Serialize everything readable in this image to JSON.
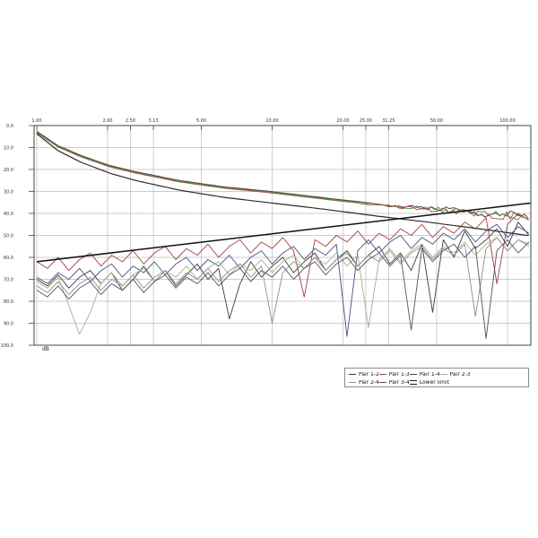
{
  "page": {
    "background": "#ffffff"
  },
  "chart_data": {
    "type": "line",
    "title": "",
    "x_axis": {
      "scale": "log",
      "unit": "MHz",
      "range_mhz": [
        1,
        125
      ],
      "ticks": [
        {
          "f": 1,
          "label": "1.00"
        },
        {
          "f": 2,
          "label": "2.00"
        },
        {
          "f": 2.5,
          "label": "2.50"
        },
        {
          "f": 3.13,
          "label": "3.13"
        },
        {
          "f": 5,
          "label": "5.00"
        },
        {
          "f": 10,
          "label": "10.00"
        },
        {
          "f": 20,
          "label": "20.00"
        },
        {
          "f": 25,
          "label": "25.00"
        },
        {
          "f": 31.25,
          "label": "31.25"
        },
        {
          "f": 50,
          "label": "50.00"
        },
        {
          "f": 100,
          "label": "100.00"
        }
      ]
    },
    "y_axis": {
      "unit_label": "dB",
      "range_db": [
        0,
        100
      ],
      "inverted": true,
      "tick_step": 10,
      "ticks": [
        "0.0",
        "10.0",
        "20.0",
        "30.0",
        "40.0",
        "50.0",
        "60.0",
        "70.0",
        "80.0",
        "90.0",
        "100.0"
      ]
    },
    "grid": {
      "line_color": "#bcbcbc",
      "border_color": "#555555",
      "tick_color": "#444444",
      "label_color": "#333333"
    },
    "legend": {
      "items": [
        {
          "label": "Pair 1-2",
          "color": "#3a3a3a",
          "marker": "line"
        },
        {
          "label": "Pair 1-3",
          "color": "#a04040",
          "marker": "line"
        },
        {
          "label": "Pair 1-4",
          "color": "#464f87",
          "marker": "line"
        },
        {
          "label": "Pair 2-3",
          "color": "#9cb489",
          "marker": "line"
        },
        {
          "label": "Pair 2-4",
          "color": "#8f8f8f",
          "marker": "line"
        },
        {
          "label": "Pair 3-4",
          "color": "#5d4a66",
          "marker": "line"
        },
        {
          "label": "Lower limit",
          "color": "#1a1a1a",
          "marker": "double-line"
        }
      ],
      "row_split": 4
    },
    "series": {
      "pair_freq_grid": {
        "points_per_decade": 22,
        "i_max": 46
      },
      "pairs": [
        {
          "name": "Pair 1-2",
          "color": "#3a3a3a",
          "db": [
            70,
            73,
            68,
            74,
            69,
            66,
            72,
            67,
            75,
            70,
            64,
            71,
            66,
            73,
            68,
            63,
            70,
            65,
            88,
            72,
            62,
            69,
            64,
            60,
            67,
            62,
            58,
            66,
            61,
            57,
            64,
            59,
            55,
            63,
            58,
            66,
            54,
            85,
            52,
            60,
            48,
            56,
            52,
            47,
            55,
            44,
            50
          ]
        },
        {
          "name": "Pair 1-3",
          "color": "#a04040",
          "db": [
            62,
            65,
            60,
            66,
            61,
            58,
            64,
            59,
            62,
            57,
            63,
            58,
            55,
            61,
            56,
            59,
            54,
            60,
            55,
            52,
            58,
            53,
            56,
            51,
            57,
            78,
            52,
            55,
            50,
            53,
            48,
            54,
            49,
            52,
            47,
            50,
            45,
            51,
            46,
            49,
            44,
            47,
            42,
            72,
            45,
            40,
            43
          ]
        },
        {
          "name": "Pair 1-4",
          "color": "#464f87",
          "db": [
            69,
            72,
            67,
            70,
            65,
            71,
            66,
            63,
            69,
            64,
            67,
            62,
            68,
            63,
            60,
            66,
            61,
            64,
            59,
            65,
            60,
            57,
            63,
            58,
            55,
            61,
            56,
            59,
            54,
            96,
            57,
            52,
            58,
            53,
            50,
            56,
            51,
            54,
            49,
            52,
            47,
            53,
            48,
            45,
            51,
            46,
            49
          ]
        },
        {
          "name": "Pair 2-3",
          "color": "#9cb489",
          "db": [
            71,
            74,
            69,
            82,
            95,
            85,
            72,
            67,
            73,
            68,
            65,
            71,
            66,
            69,
            64,
            70,
            65,
            62,
            68,
            63,
            66,
            61,
            67,
            62,
            59,
            65,
            60,
            63,
            58,
            64,
            59,
            92,
            61,
            56,
            62,
            57,
            54,
            60,
            55,
            58,
            53,
            59,
            54,
            51,
            57,
            52,
            55
          ]
        },
        {
          "name": "Pair 2-4",
          "color": "#8f8f8f",
          "db": [
            73,
            76,
            71,
            77,
            72,
            69,
            75,
            70,
            73,
            68,
            74,
            69,
            66,
            72,
            67,
            70,
            65,
            71,
            66,
            63,
            69,
            64,
            90,
            67,
            62,
            65,
            60,
            66,
            61,
            58,
            64,
            59,
            62,
            57,
            63,
            58,
            55,
            61,
            56,
            59,
            54,
            87,
            56,
            51,
            57,
            52,
            54
          ]
        },
        {
          "name": "Pair 3-4",
          "color": "#5d4a66",
          "db": [
            75,
            78,
            73,
            79,
            74,
            71,
            77,
            72,
            75,
            70,
            76,
            71,
            68,
            74,
            69,
            72,
            67,
            73,
            68,
            65,
            71,
            66,
            69,
            64,
            70,
            65,
            62,
            68,
            63,
            60,
            66,
            61,
            58,
            64,
            59,
            93,
            56,
            62,
            57,
            54,
            60,
            55,
            97,
            57,
            52,
            58,
            53
          ]
        }
      ],
      "insertion_loss_cluster": {
        "curves": [
          {
            "color": "#3a3a3a",
            "offset_db": -0.3
          },
          {
            "color": "#4e8a3e",
            "offset_db": 0.0
          },
          {
            "color": "#a04848",
            "offset_db": 0.35
          }
        ],
        "fuzz": {
          "start_mhz": 22,
          "max_amp_db": 2.1
        },
        "points": [
          [
            1,
            2.9
          ],
          [
            1.23,
            9.4
          ],
          [
            1.54,
            13.9
          ],
          [
            2.03,
            18.4
          ],
          [
            2.6,
            21.2
          ],
          [
            4.03,
            25.3
          ],
          [
            6.25,
            28.2
          ],
          [
            9.67,
            30.2
          ],
          [
            16.4,
            33.1
          ],
          [
            27.8,
            35.9
          ],
          [
            47,
            38.0
          ],
          [
            79.5,
            40.0
          ],
          [
            125,
            41.6
          ]
        ]
      },
      "smooth_curve_2": {
        "color": "#2a2a2a",
        "points": [
          [
            1,
            3.7
          ],
          [
            1.23,
            11.4
          ],
          [
            1.54,
            16.7
          ],
          [
            2.03,
            21.6
          ],
          [
            2.6,
            24.9
          ],
          [
            4.03,
            29.4
          ],
          [
            6.25,
            32.7
          ],
          [
            9.67,
            35.1
          ],
          [
            16.4,
            38.0
          ],
          [
            27.8,
            41.2
          ],
          [
            47,
            44.1
          ],
          [
            79.5,
            47.3
          ],
          [
            125,
            50.2
          ]
        ]
      },
      "lower_limit": {
        "name": "Lower limit",
        "color": "#111111",
        "points": [
          [
            1,
            62.0
          ],
          [
            125,
            35.3
          ]
        ]
      }
    }
  }
}
